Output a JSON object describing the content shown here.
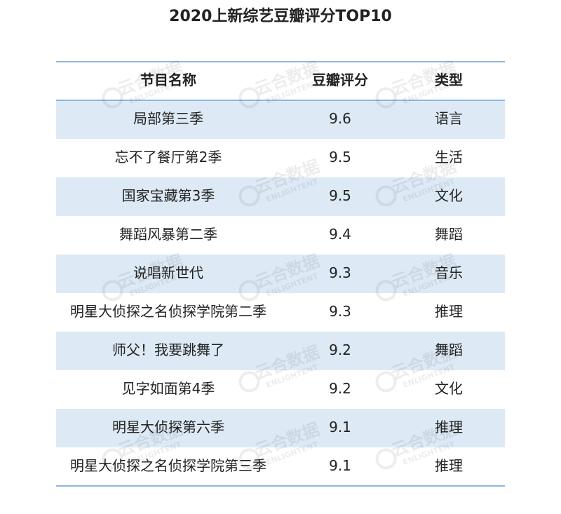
{
  "title": "2020上新综艺豆瓣评分TOP10",
  "table": {
    "header": [
      "节目名称",
      "豆瓣评分",
      "类型"
    ],
    "rows": [
      [
        "局部第三季",
        9.6,
        "语言"
      ],
      [
        "忘不了餐厅第2季",
        9.5,
        "生活"
      ],
      [
        "国家宝藏第3季",
        9.5,
        "文化"
      ],
      [
        "舞蹈风暴第二季",
        9.4,
        "舞蹈"
      ],
      [
        "说唱新世代",
        9.3,
        "音乐"
      ],
      [
        "明星大侦探之名侦探学院第二季",
        9.3,
        "推理"
      ],
      [
        "师父！我要跳舞了",
        9.2,
        "舞蹈"
      ],
      [
        "见字如面第4季",
        9.2,
        "文化"
      ],
      [
        "明星大侦探第六季",
        9.1,
        "推理"
      ],
      [
        "明星大侦探之名侦探学院第三季",
        9.1,
        "推理"
      ]
    ]
  },
  "watermark": {
    "text": "云合数据",
    "subtext": "ENLIGHTENT"
  }
}
